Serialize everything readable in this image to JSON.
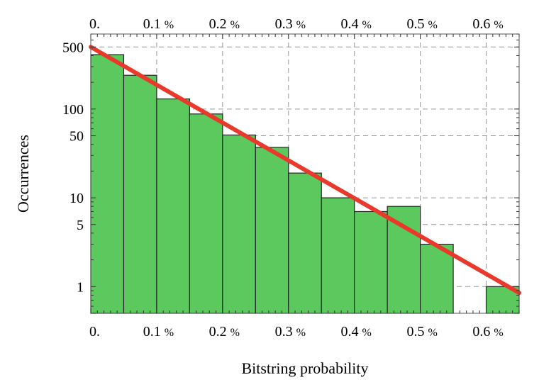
{
  "chart_data": {
    "type": "bar",
    "xlabel": "Bitstring probability",
    "ylabel": "Occurrences",
    "y_scale": "log",
    "grid": true,
    "x_axis": {
      "range": [
        0,
        0.65
      ],
      "ticks": [
        {
          "value": 0.0,
          "num": "0.",
          "unit": ""
        },
        {
          "value": 0.1,
          "num": "0.1",
          "unit": "%"
        },
        {
          "value": 0.2,
          "num": "0.2",
          "unit": "%"
        },
        {
          "value": 0.3,
          "num": "0.3",
          "unit": "%"
        },
        {
          "value": 0.4,
          "num": "0.4",
          "unit": "%"
        },
        {
          "value": 0.5,
          "num": "0.5",
          "unit": "%"
        },
        {
          "value": 0.6,
          "num": "0.6",
          "unit": "%"
        }
      ]
    },
    "y_axis": {
      "range": [
        0.5,
        700
      ],
      "major_ticks": [
        {
          "value": 1,
          "label": "1"
        },
        {
          "value": 5,
          "label": "5"
        },
        {
          "value": 10,
          "label": "10"
        },
        {
          "value": 50,
          "label": "50"
        },
        {
          "value": 100,
          "label": "100"
        },
        {
          "value": 500,
          "label": "500"
        }
      ]
    },
    "bin_width": 0.05,
    "bars": [
      {
        "x0": 0.0,
        "x1": 0.05,
        "value": 410
      },
      {
        "x0": 0.05,
        "x1": 0.1,
        "value": 240
      },
      {
        "x0": 0.1,
        "x1": 0.15,
        "value": 130
      },
      {
        "x0": 0.15,
        "x1": 0.2,
        "value": 88
      },
      {
        "x0": 0.2,
        "x1": 0.25,
        "value": 51
      },
      {
        "x0": 0.25,
        "x1": 0.3,
        "value": 37
      },
      {
        "x0": 0.3,
        "x1": 0.35,
        "value": 19
      },
      {
        "x0": 0.35,
        "x1": 0.4,
        "value": 10
      },
      {
        "x0": 0.4,
        "x1": 0.45,
        "value": 7
      },
      {
        "x0": 0.45,
        "x1": 0.5,
        "value": 8
      },
      {
        "x0": 0.5,
        "x1": 0.55,
        "value": 3
      },
      {
        "x0": 0.55,
        "x1": 0.6,
        "value": 0
      },
      {
        "x0": 0.6,
        "x1": 0.65,
        "value": 1
      }
    ],
    "fit_line": {
      "points": [
        {
          "x": 0.0,
          "y": 500
        },
        {
          "x": 0.65,
          "y": 0.85
        }
      ]
    },
    "colors": {
      "bar_fill": "#5cc95e",
      "bar_stroke": "#222222",
      "fit_line": "#e8392b",
      "grid": "#999999"
    }
  }
}
